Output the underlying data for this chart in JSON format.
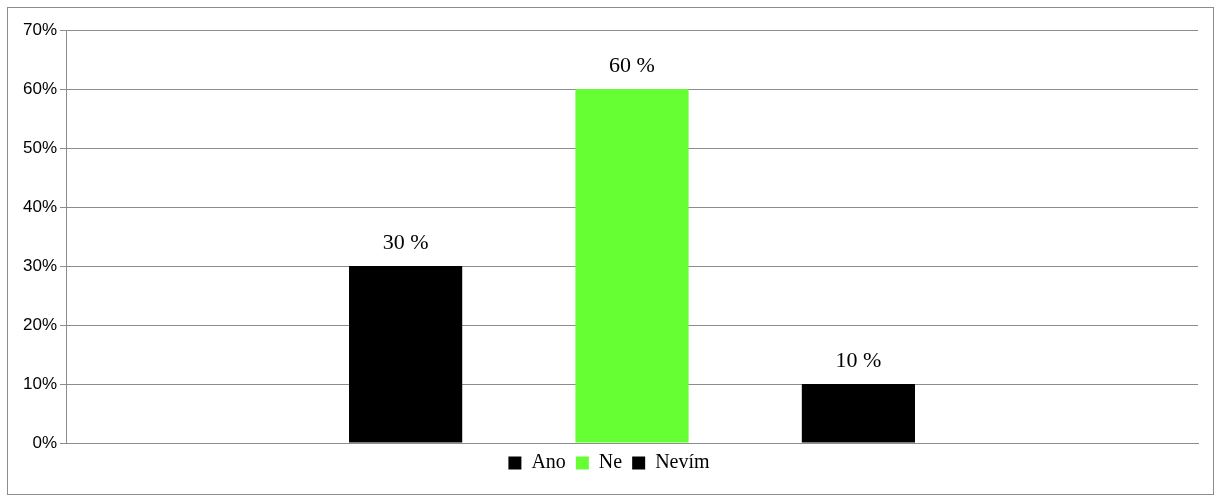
{
  "chart_data": {
    "type": "bar",
    "categories": [
      null
    ],
    "series": [
      {
        "name": "Ano",
        "color": "#000000",
        "values": [
          30
        ],
        "value_labels": [
          "30 %"
        ]
      },
      {
        "name": "Ne",
        "color": "#66ff33",
        "values": [
          60
        ],
        "value_labels": [
          "60 %"
        ]
      },
      {
        "name": "Nevím",
        "color": "#000000",
        "values": [
          10
        ],
        "value_labels": [
          "10 %"
        ]
      }
    ],
    "ylim": [
      0,
      70
    ],
    "yticks": [
      {
        "value": 0,
        "label": "0%"
      },
      {
        "value": 10,
        "label": "10%"
      },
      {
        "value": 20,
        "label": "20%"
      },
      {
        "value": 30,
        "label": "30%"
      },
      {
        "value": 40,
        "label": "40%"
      },
      {
        "value": 50,
        "label": "50%"
      },
      {
        "value": 60,
        "label": "60%"
      },
      {
        "value": 70,
        "label": "70%"
      }
    ],
    "grid": "y",
    "legend": "bottom"
  }
}
